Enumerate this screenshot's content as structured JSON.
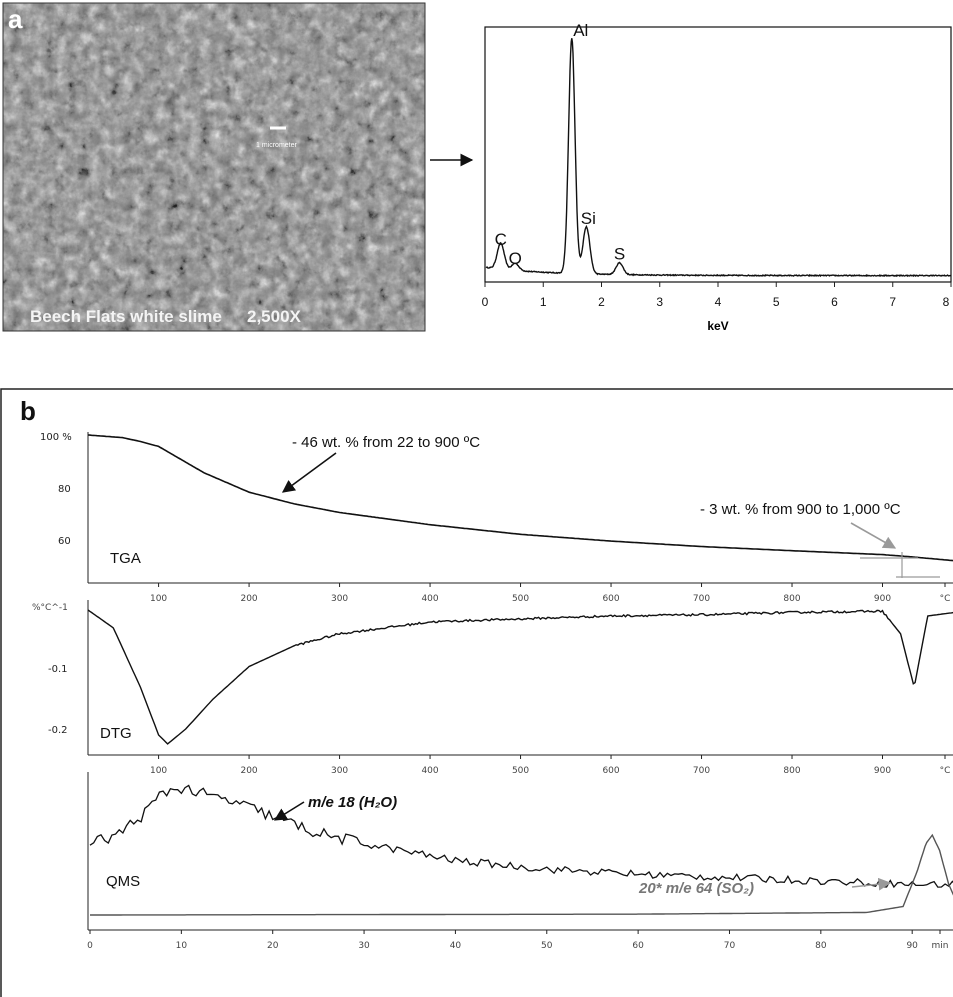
{
  "panel_a": {
    "letter": "a",
    "sem": {
      "caption_sample": "Beech Flats white slime",
      "caption_mag": "2,500X",
      "scale_bar_label": "1 micrometer"
    },
    "eds_xlabel": "keV"
  },
  "panel_b": {
    "letter": "b",
    "tga": {
      "label": "TGA",
      "y_ticks": [
        "100 %",
        "80",
        "60"
      ],
      "annotation_1": "- 46 wt. % from 22 to 900 ºC",
      "annotation_2": "- 3 wt. % from 900 to 1,000 ºC"
    },
    "dtg": {
      "label": "DTG",
      "y_ticks": [
        "%°C^-1",
        "-0.1",
        "-0.2"
      ]
    },
    "qms": {
      "label": "QMS",
      "annotation_h2o": "m/e 18 (H₂O)",
      "annotation_so2": "20* m/e 64 (SO₂)"
    },
    "temp_ticks": [
      "100",
      "200",
      "300",
      "400",
      "500",
      "600",
      "700",
      "800",
      "900",
      "°C"
    ],
    "time_ticks": [
      "0",
      "10",
      "20",
      "30",
      "40",
      "50",
      "60",
      "70",
      "80",
      "90",
      "min"
    ]
  },
  "chart_data": [
    {
      "type": "line",
      "panel": "a-eds",
      "xlabel": "keV",
      "xlim": [
        0,
        8
      ],
      "x_ticks": [
        "0",
        "1",
        "2",
        "3",
        "4",
        "5",
        "6",
        "7",
        "8"
      ],
      "peaks": [
        {
          "element": "C",
          "x": 0.27,
          "rel_intensity": 0.11
        },
        {
          "element": "O",
          "x": 0.52,
          "rel_intensity": 0.03
        },
        {
          "element": "Al",
          "x": 1.49,
          "rel_intensity": 1.0
        },
        {
          "element": "Si",
          "x": 1.74,
          "rel_intensity": 0.2
        },
        {
          "element": "S",
          "x": 2.31,
          "rel_intensity": 0.05
        }
      ]
    },
    {
      "type": "line",
      "panel": "b-tga",
      "series": [
        {
          "name": "TGA",
          "x": [
            22,
            60,
            80,
            100,
            150,
            200,
            250,
            300,
            400,
            500,
            600,
            700,
            800,
            900,
            930,
            1000
          ],
          "values": [
            100,
            99,
            97.5,
            95.6,
            85.5,
            78,
            73.5,
            70.2,
            65.5,
            61.8,
            59.2,
            57.1,
            55.5,
            54,
            53.2,
            51
          ]
        }
      ],
      "y_ticks": [
        "100 %",
        "80",
        "60"
      ],
      "x_ticks": [
        "100",
        "200",
        "300",
        "400",
        "500",
        "600",
        "700",
        "800",
        "900",
        "°C"
      ]
    },
    {
      "type": "line",
      "panel": "b-dtg",
      "series": [
        {
          "name": "DTG",
          "x": [
            22,
            50,
            80,
            100,
            110,
            130,
            160,
            200,
            250,
            300,
            400,
            500,
            600,
            700,
            800,
            900,
            920,
            935,
            950,
            1000
          ],
          "values": [
            0,
            -0.03,
            -0.13,
            -0.21,
            -0.225,
            -0.2,
            -0.15,
            -0.095,
            -0.06,
            -0.04,
            -0.02,
            -0.015,
            -0.01,
            -0.008,
            -0.004,
            -0.002,
            -0.04,
            -0.13,
            -0.01,
            0
          ]
        }
      ],
      "y_ticks": [
        "%°C^-1",
        "-0.1",
        "-0.2"
      ]
    },
    {
      "type": "line",
      "panel": "b-qms",
      "series": [
        {
          "name": "m/e 18 (H₂O)",
          "x": [
            0,
            3,
            6,
            8,
            10,
            13,
            16,
            20,
            25,
            30,
            40,
            50,
            60,
            70,
            80,
            90,
            96
          ],
          "values": [
            0.42,
            0.47,
            0.6,
            0.72,
            0.75,
            0.7,
            0.66,
            0.58,
            0.48,
            0.42,
            0.32,
            0.27,
            0.24,
            0.22,
            0.2,
            0.18,
            0.18
          ]
        },
        {
          "name": "20* m/e 64 (SO₂)",
          "x": [
            0,
            60,
            85,
            89,
            90.5,
            91.5,
            92.2,
            93,
            94,
            95,
            96
          ],
          "values": [
            0,
            0.005,
            0.015,
            0.05,
            0.25,
            0.42,
            0.47,
            0.38,
            0.18,
            0.06,
            0.02
          ]
        }
      ],
      "x_ticks": [
        "0",
        "10",
        "20",
        "30",
        "40",
        "50",
        "60",
        "70",
        "80",
        "90",
        "min"
      ]
    }
  ]
}
